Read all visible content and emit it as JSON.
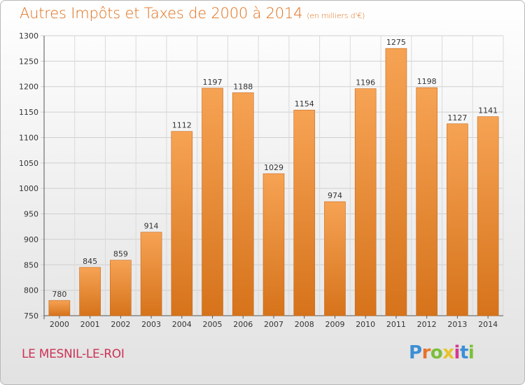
{
  "chart_data": {
    "type": "bar",
    "title": "Autres Impôts et Taxes de 2000 à 2014",
    "subtitle": "(en milliers d'€)",
    "categories": [
      "2000",
      "2001",
      "2002",
      "2003",
      "2004",
      "2005",
      "2006",
      "2007",
      "2008",
      "2009",
      "2010",
      "2011",
      "2012",
      "2013",
      "2014"
    ],
    "values": [
      780,
      845,
      859,
      914,
      1112,
      1197,
      1188,
      1029,
      1154,
      974,
      1196,
      1275,
      1198,
      1127,
      1141
    ],
    "ylim": [
      750,
      1300
    ],
    "yticks": [
      750,
      800,
      850,
      900,
      950,
      1000,
      1050,
      1100,
      1150,
      1200,
      1250,
      1300
    ],
    "grid": true,
    "bar_color": "#f0902f"
  },
  "footer": {
    "commune": "LE MESNIL-LE-ROI",
    "logo_letters": [
      "P",
      "r",
      "o",
      "x",
      "i",
      "t",
      "i"
    ],
    "logo_colors": [
      "#3b8fd6",
      "#e8732a",
      "#7cbf3a",
      "#e8c32a",
      "#d63a8f",
      "#3b8fd6",
      "#7cbf3a"
    ]
  }
}
